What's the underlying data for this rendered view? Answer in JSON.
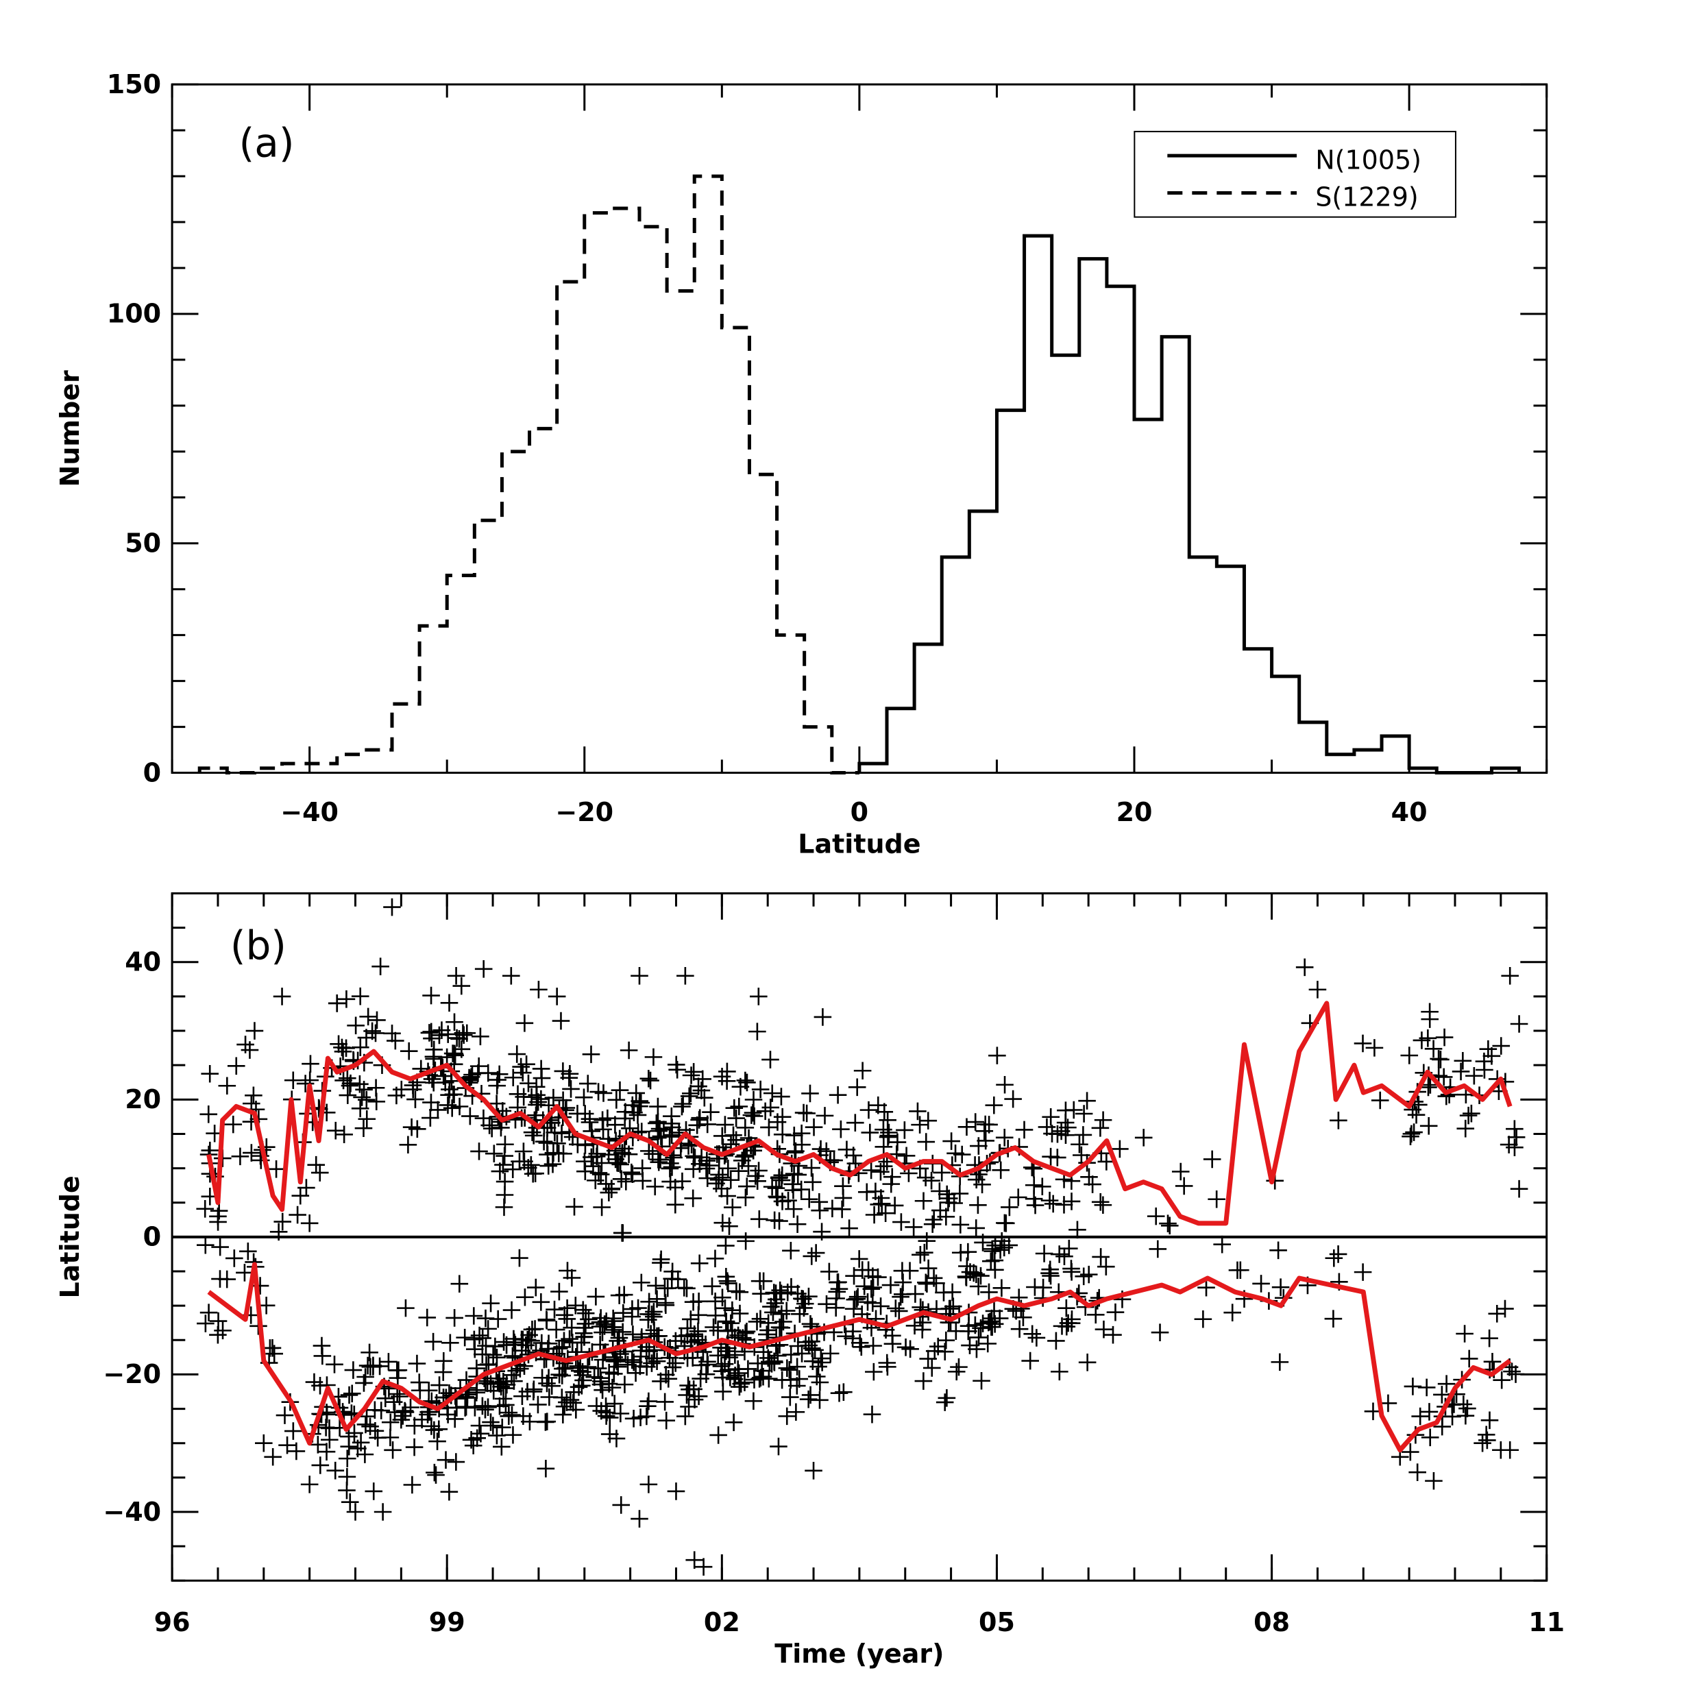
{
  "chart_data": [
    {
      "type": "histogram",
      "panel_label": "(a)",
      "xlabel": "Latitude",
      "ylabel": "Number",
      "xlim": [
        -50,
        50
      ],
      "ylim": [
        0,
        150
      ],
      "xticks": [
        -40,
        -20,
        0,
        20,
        40
      ],
      "xtick_labels": [
        "−40",
        "−20",
        "0",
        "20",
        "40"
      ],
      "yticks": [
        0,
        50,
        100,
        150
      ],
      "ytick_labels": [
        "0",
        "50",
        "100",
        "150"
      ],
      "legend": {
        "position": "top-right",
        "entries": [
          {
            "label": "N(1005)",
            "style": "solid"
          },
          {
            "label": "S(1229)",
            "style": "dashed"
          }
        ]
      },
      "series": [
        {
          "name": "S(1229)",
          "style": "dashed",
          "bin_edges": [
            -48,
            -46,
            -44,
            -42,
            -40,
            -38,
            -36,
            -34,
            -32,
            -30,
            -28,
            -26,
            -24,
            -22,
            -20,
            -18,
            -16,
            -14,
            -12,
            -10,
            -8,
            -6,
            -4,
            -2,
            0
          ],
          "counts": [
            1,
            0,
            1,
            2,
            2,
            4,
            5,
            15,
            32,
            43,
            55,
            70,
            75,
            107,
            122,
            123,
            119,
            105,
            130,
            97,
            65,
            30,
            10,
            0
          ]
        },
        {
          "name": "N(1005)",
          "style": "solid",
          "bin_edges": [
            0,
            2,
            4,
            6,
            8,
            10,
            12,
            14,
            16,
            18,
            20,
            22,
            24,
            26,
            28,
            30,
            32,
            34,
            36,
            38,
            40,
            42,
            44,
            46,
            48
          ],
          "counts": [
            2,
            14,
            28,
            47,
            57,
            79,
            117,
            91,
            112,
            106,
            77,
            95,
            47,
            45,
            27,
            21,
            11,
            4,
            5,
            8,
            1,
            0,
            0,
            1
          ]
        }
      ]
    },
    {
      "type": "scatter",
      "panel_label": "(b)",
      "xlabel": "Time  (year)",
      "ylabel": "Latitude",
      "xlim": [
        1996,
        2011
      ],
      "ylim": [
        -50,
        50
      ],
      "xticks": [
        1996,
        1999,
        2002,
        2005,
        2008,
        2011
      ],
      "xtick_labels": [
        "96",
        "99",
        "02",
        "05",
        "08",
        "11"
      ],
      "yticks": [
        -40,
        -20,
        0,
        20,
        40
      ],
      "ytick_labels": [
        "−40",
        "−20",
        "0",
        "20",
        "40"
      ],
      "zero_line": 0,
      "series": [
        {
          "name": "North mean",
          "type": "line",
          "color": "#e41a1c",
          "x": [
            1996.4,
            1996.5,
            1996.55,
            1996.7,
            1996.9,
            1997.1,
            1997.2,
            1997.3,
            1997.4,
            1997.5,
            1997.6,
            1997.7,
            1997.8,
            1998.0,
            1998.2,
            1998.4,
            1998.6,
            1998.8,
            1999.0,
            1999.2,
            1999.4,
            1999.6,
            1999.8,
            2000.0,
            2000.2,
            2000.4,
            2000.6,
            2000.8,
            2001.0,
            2001.2,
            2001.4,
            2001.6,
            2001.8,
            2002.0,
            2002.2,
            2002.4,
            2002.6,
            2002.8,
            2003.0,
            2003.2,
            2003.4,
            2003.6,
            2003.8,
            2004.0,
            2004.2,
            2004.4,
            2004.6,
            2004.8,
            2005.0,
            2005.2,
            2005.4,
            2005.6,
            2005.8,
            2006.0,
            2006.2,
            2006.4,
            2006.6,
            2006.8,
            2007.0,
            2007.2,
            2007.5,
            2007.7,
            2008.0,
            2008.3,
            2008.6,
            2008.7,
            2008.9,
            2009.0,
            2009.2,
            2009.5,
            2009.7,
            2009.9,
            2010.1,
            2010.3,
            2010.5,
            2010.6
          ],
          "y": [
            12,
            5,
            17,
            19,
            18,
            6,
            4,
            20,
            8,
            22,
            14,
            26,
            24,
            25,
            27,
            24,
            23,
            24,
            25,
            22,
            20,
            17,
            18,
            16,
            19,
            15,
            14,
            13,
            15,
            14,
            12,
            15,
            13,
            12,
            13,
            14,
            12,
            11,
            12,
            10,
            9,
            11,
            12,
            10,
            11,
            11,
            9,
            10,
            12,
            13,
            11,
            10,
            9,
            11,
            14,
            7,
            8,
            7,
            3,
            2,
            2,
            28,
            8,
            27,
            34,
            20,
            25,
            21,
            22,
            19,
            24,
            21,
            22,
            20,
            23,
            19
          ],
          "rendered_as": "line"
        },
        {
          "name": "South mean",
          "type": "line",
          "color": "#e41a1c",
          "x": [
            1996.4,
            1996.6,
            1996.8,
            1996.9,
            1997.0,
            1997.1,
            1997.3,
            1997.5,
            1997.7,
            1997.9,
            1998.1,
            1998.3,
            1998.5,
            1998.7,
            1998.9,
            1999.2,
            1999.4,
            1999.6,
            1999.8,
            2000.0,
            2000.3,
            2000.6,
            2000.9,
            2001.2,
            2001.5,
            2001.8,
            2002.0,
            2002.3,
            2002.6,
            2002.9,
            2003.2,
            2003.5,
            2003.8,
            2004.0,
            2004.2,
            2004.5,
            2004.8,
            2005.0,
            2005.3,
            2005.6,
            2005.8,
            2006.0,
            2006.2,
            2006.5,
            2006.8,
            2007.0,
            2007.3,
            2007.6,
            2007.9,
            2008.1,
            2008.3,
            2009.0,
            2009.2,
            2009.4,
            2009.6,
            2009.8,
            2010.0,
            2010.2,
            2010.4,
            2010.6
          ],
          "y": [
            -8,
            -10,
            -12,
            -4,
            -18,
            -20,
            -24,
            -30,
            -22,
            -28,
            -25,
            -21,
            -22,
            -24,
            -25,
            -22,
            -20,
            -19,
            -18,
            -17,
            -18,
            -17,
            -16,
            -15,
            -17,
            -16,
            -15,
            -16,
            -15,
            -14,
            -13,
            -12,
            -13,
            -12,
            -11,
            -12,
            -10,
            -9,
            -10,
            -9,
            -8,
            -10,
            -9,
            -8,
            -7,
            -8,
            -6,
            -8,
            -9,
            -10,
            -6,
            -8,
            -26,
            -31,
            -28,
            -27,
            -22,
            -19,
            -20,
            -18
          ],
          "rendered_as": "line"
        },
        {
          "name": "Sunspot groups (crosses)",
          "type": "scatter",
          "rendered_as": "plus markers",
          "count_north": 1005,
          "count_south": 1229,
          "highlighted_points": [
            [
              1996.4,
              12
            ],
            [
              1996.5,
              3
            ],
            [
              1996.6,
              22
            ],
            [
              1996.8,
              28
            ],
            [
              1996.9,
              30
            ],
            [
              1997.2,
              35
            ],
            [
              1997.4,
              6
            ],
            [
              1997.5,
              2
            ],
            [
              1997.8,
              34
            ],
            [
              1998.4,
              48
            ],
            [
              1999.1,
              38
            ],
            [
              1999.4,
              39
            ],
            [
              1999.7,
              38
            ],
            [
              2000.0,
              36
            ],
            [
              2000.2,
              35
            ],
            [
              2001.1,
              38
            ],
            [
              2001.6,
              38
            ],
            [
              2002.4,
              35
            ],
            [
              2003.1,
              32
            ],
            [
              2005.1,
              2
            ],
            [
              2008.5,
              36
            ],
            [
              2010.6,
              38
            ],
            [
              2010.7,
              31
            ],
            [
              2010.7,
              7
            ],
            [
              1996.4,
              -11
            ],
            [
              1997.0,
              -30
            ],
            [
              1997.1,
              -32
            ],
            [
              1997.5,
              -36
            ],
            [
              1998.0,
              -40
            ],
            [
              1998.2,
              -37
            ],
            [
              1998.3,
              -40
            ],
            [
              2000.9,
              -39
            ],
            [
              2001.1,
              -41
            ],
            [
              2001.2,
              -36
            ],
            [
              2001.5,
              -37
            ],
            [
              2001.7,
              -47
            ],
            [
              2001.8,
              -48
            ],
            [
              2003.0,
              -34
            ],
            [
              2009.4,
              -32
            ],
            [
              2010.3,
              -30
            ],
            [
              2010.5,
              -31
            ],
            [
              2010.6,
              -31
            ]
          ]
        }
      ]
    }
  ]
}
